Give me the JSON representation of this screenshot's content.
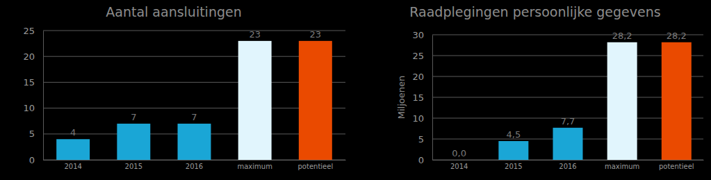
{
  "chart_data": [
    {
      "type": "bar",
      "title": "Aantal aansluitingen",
      "categories": [
        "2014",
        "2015",
        "2016",
        "maximum",
        "potentieel"
      ],
      "values": [
        4,
        7,
        7,
        23,
        23
      ],
      "colors": [
        "#1aa6d6",
        "#1aa6d6",
        "#1aa6d6",
        "#e1f5fd",
        "#ea4a00"
      ],
      "ylim": [
        0,
        25
      ],
      "yticks": [
        0,
        5,
        10,
        15,
        20,
        25
      ],
      "grid": true,
      "data_labels": true
    },
    {
      "type": "bar",
      "title": "Raadplegingen persoonlijke gegevens",
      "y_label": "Miljoenen",
      "categories": [
        "2014",
        "2015",
        "2016",
        "maximum",
        "potentieel"
      ],
      "values": [
        0.0,
        4.5,
        7.7,
        28.2,
        28.2
      ],
      "value_labels": [
        "0,0",
        "4,5",
        "7,7",
        "28,2",
        "28,2"
      ],
      "colors": [
        "#1aa6d6",
        "#1aa6d6",
        "#1aa6d6",
        "#e1f5fd",
        "#ea4a00"
      ],
      "ylim": [
        0,
        30
      ],
      "yticks": [
        0,
        5,
        10,
        15,
        20,
        25,
        30
      ],
      "grid": true,
      "data_labels": true
    }
  ]
}
